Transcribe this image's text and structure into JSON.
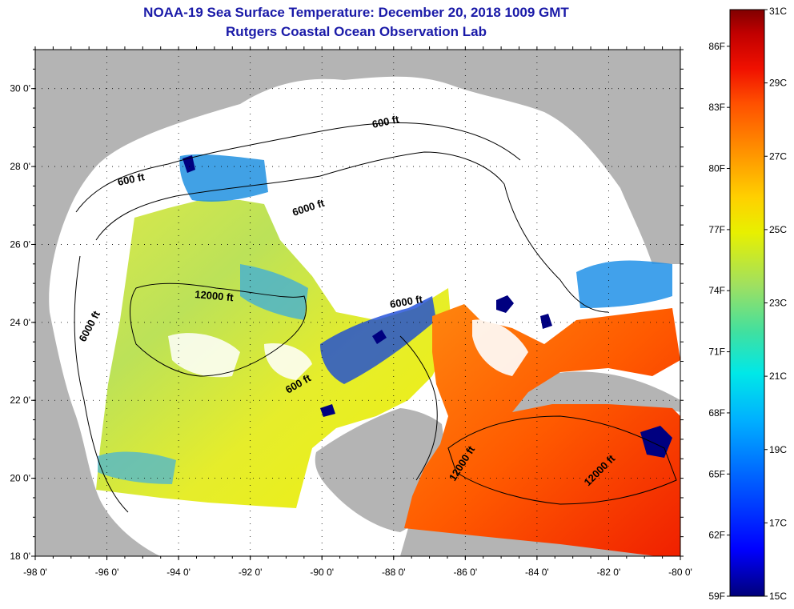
{
  "title": {
    "line1": "NOAA-19 Sea Surface Temperature:  December 20, 2018 1009 GMT",
    "line2": "Rutgers Coastal Ocean Observation Lab"
  },
  "axes": {
    "lon_range": [
      -98,
      -80
    ],
    "lat_range": [
      18,
      31
    ],
    "lon_ticks": [
      "-98 0'",
      "-96 0'",
      "-94 0'",
      "-92 0'",
      "-90 0'",
      "-88 0'",
      "-86 0'",
      "-84 0'",
      "-82 0'",
      "-80 0'"
    ],
    "lat_ticks": [
      "18 0'",
      "20 0'",
      "22 0'",
      "24 0'",
      "26 0'",
      "28 0'",
      "30 0'"
    ],
    "grid": "dotted"
  },
  "contour_labels": [
    {
      "text": "600 ft"
    },
    {
      "text": "600 ft"
    },
    {
      "text": "6000 ft"
    },
    {
      "text": "12000 ft"
    },
    {
      "text": "6000 ft"
    },
    {
      "text": "6000 ft"
    },
    {
      "text": "600 ft"
    },
    {
      "text": "12000 ft"
    },
    {
      "text": "12000 ft"
    }
  ],
  "colorbar": {
    "range_c": [
      15,
      31
    ],
    "celsius_labels": [
      "31C",
      "29C",
      "27C",
      "25C",
      "23C",
      "21C",
      "19C",
      "17C",
      "15C"
    ],
    "fahrenheit_labels": [
      "86F",
      "83F",
      "80F",
      "77F",
      "74F",
      "71F",
      "68F",
      "65F",
      "62F",
      "59F"
    ],
    "colors": [
      "#00007a",
      "#0000ff",
      "#0060ff",
      "#00b0ff",
      "#00e8e8",
      "#40e0a0",
      "#a0e060",
      "#e8f000",
      "#ffd000",
      "#ff9000",
      "#ff5000",
      "#f01000",
      "#c00000",
      "#800000"
    ]
  },
  "colors": {
    "land": "#b4b4b4",
    "no_data": "#ffffff",
    "title": "#1a1aa8"
  }
}
